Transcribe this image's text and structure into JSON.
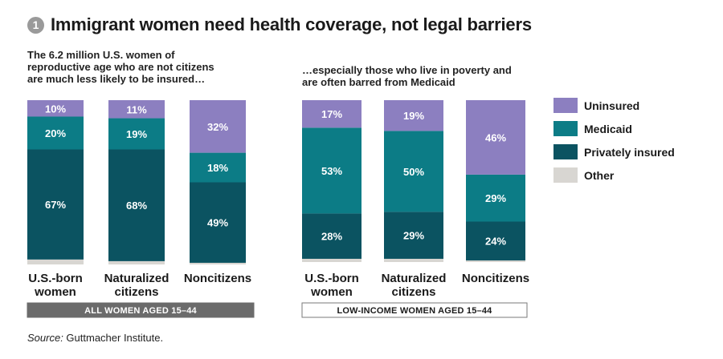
{
  "title": {
    "badge_number": "1",
    "text": "Immigrant women need health coverage, not legal barriers"
  },
  "subtitles": {
    "left": "The 6.2 million U.S. women of\nreproductive age who are not citizens\nare much less likely to be insured…",
    "right": "…especially those who live in poverty and\n    are often barred from Medicaid"
  },
  "legend": [
    {
      "key": "uninsured",
      "label": "Uninsured",
      "color": "#8c7fc0"
    },
    {
      "key": "medicaid",
      "label": "Medicaid",
      "color": "#0c7c86"
    },
    {
      "key": "private",
      "label": "Privately insured",
      "color": "#0b5361"
    },
    {
      "key": "other",
      "label": "Other",
      "color": "#d8d6d2"
    }
  ],
  "chart_data": [
    {
      "type": "bar",
      "stacked": true,
      "percent": true,
      "group_label": "ALL WOMEN AGED 15–44",
      "group_label_style": "dark",
      "categories": [
        [
          "U.S.-born",
          "women"
        ],
        [
          "Naturalized",
          "citizens"
        ],
        [
          "Noncitizens"
        ]
      ],
      "series": [
        {
          "name": "Other",
          "values": [
            3,
            2,
            1
          ]
        },
        {
          "name": "Privately insured",
          "values": [
            67,
            68,
            49
          ]
        },
        {
          "name": "Medicaid",
          "values": [
            20,
            19,
            18
          ]
        },
        {
          "name": "Uninsured",
          "values": [
            10,
            11,
            32
          ]
        }
      ],
      "data_labels": {
        "Privately insured": [
          "67%",
          "68%",
          "49%"
        ],
        "Medicaid": [
          "20%",
          "19%",
          "18%"
        ],
        "Uninsured": [
          "10%",
          "11%",
          "32%"
        ]
      },
      "ylim": [
        0,
        100
      ]
    },
    {
      "type": "bar",
      "stacked": true,
      "percent": true,
      "group_label": "LOW-INCOME WOMEN AGED 15–44",
      "group_label_style": "outline",
      "categories": [
        [
          "U.S.-born",
          "women"
        ],
        [
          "Naturalized",
          "citizens"
        ],
        [
          "Noncitizens"
        ]
      ],
      "series": [
        {
          "name": "Other",
          "values": [
            2,
            2,
            1
          ]
        },
        {
          "name": "Privately insured",
          "values": [
            28,
            29,
            24
          ]
        },
        {
          "name": "Medicaid",
          "values": [
            53,
            50,
            29
          ]
        },
        {
          "name": "Uninsured",
          "values": [
            17,
            19,
            46
          ]
        }
      ],
      "data_labels": {
        "Privately insured": [
          "28%",
          "29%",
          "24%"
        ],
        "Medicaid": [
          "53%",
          "50%",
          "29%"
        ],
        "Uninsured": [
          "17%",
          "19%",
          "46%"
        ]
      },
      "ylim": [
        0,
        100
      ]
    }
  ],
  "source": {
    "prefix": "Source:",
    "text": " Guttmacher Institute."
  }
}
